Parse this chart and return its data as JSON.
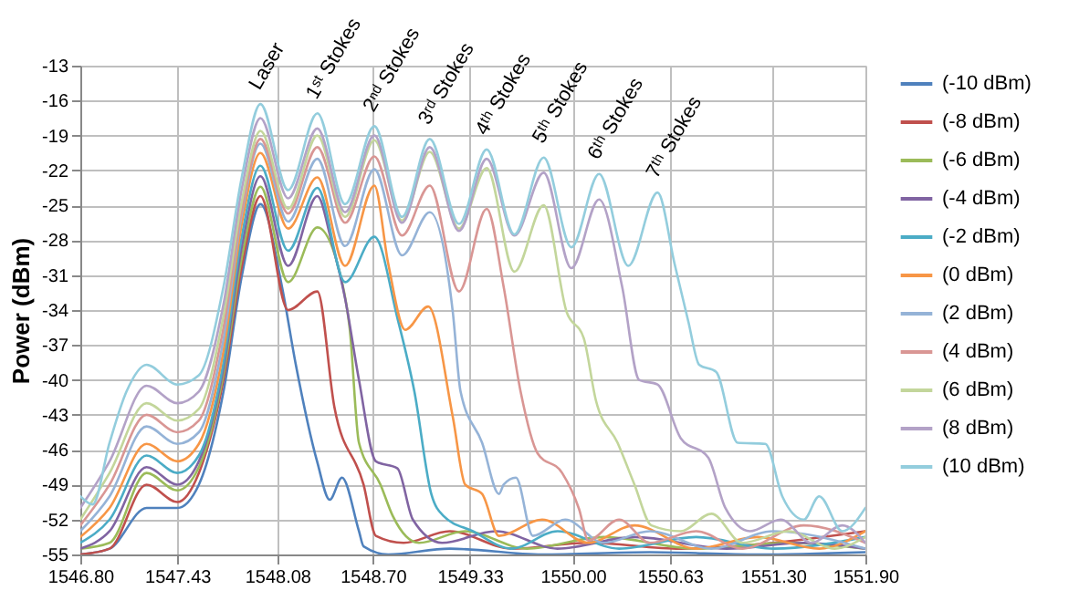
{
  "chart_data": {
    "type": "line",
    "ylabel": "Power (dBm)",
    "xlim": [
      1546.8,
      1551.9
    ],
    "xticks": [
      {
        "value": 1546.8,
        "label": "1546.80"
      },
      1547.43,
      1548.08,
      {
        "value": 1548.7,
        "label": "1548.70"
      },
      1549.33,
      {
        "value": 1550.0,
        "label": "1550.00"
      },
      1550.63,
      {
        "value": 1551.3,
        "label": "1551.30"
      },
      {
        "value": 1551.9,
        "label": "1551.90"
      }
    ],
    "ylim": [
      -55,
      -13
    ],
    "yticks": [
      -55,
      -52,
      -49,
      -46,
      -43,
      -40,
      -37,
      -34,
      -31,
      -28,
      -25,
      -22,
      -19,
      -16,
      -13
    ],
    "grid": true,
    "legend": "right",
    "marker": "none",
    "line_style": "solid",
    "annotations": [
      {
        "text": "Laser",
        "x": 1547.97,
        "y": -16.3
      },
      {
        "text": "1ˢᵗ Stokes",
        "x": 1548.34,
        "y": -17.1
      },
      {
        "text": "2ⁿᵈ Stokes",
        "x": 1548.71,
        "y": -18.2
      },
      {
        "text": "3ʳᵈ Stokes",
        "x": 1549.07,
        "y": -19.3
      },
      {
        "text": "4ᵗʰ Stokes",
        "x": 1549.44,
        "y": -20.2
      },
      {
        "text": "5ᵗʰ Stokes",
        "x": 1549.81,
        "y": -20.9
      },
      {
        "text": "6ᵗʰ Stokes",
        "x": 1550.17,
        "y": -22.3
      },
      {
        "text": "7ᵗʰ Stokes",
        "x": 1550.55,
        "y": -23.9
      }
    ],
    "series": [
      {
        "name": "(-10 dBm)",
        "color": "#4f81bd",
        "x": [
          1546.8,
          1546.99,
          1547.23,
          1547.43,
          1547.57,
          1547.73,
          1547.85,
          1547.97,
          1548.11,
          1548.2,
          1548.34,
          1548.42,
          1548.5,
          1548.61,
          1548.64,
          1548.8,
          1549.2,
          1549.8,
          1550.5,
          1551.2,
          1551.9
        ],
        "values": [
          -55,
          -54.5,
          -51,
          -51,
          -49,
          -41,
          -31,
          -24.9,
          -32,
          -38.7,
          -47.1,
          -50.3,
          -48.4,
          -53,
          -54.3,
          -55,
          -54.5,
          -55,
          -54.8,
          -55,
          -54.8
        ]
      },
      {
        "name": "(-8 dBm)",
        "color": "#c0504d",
        "x": [
          1546.8,
          1546.99,
          1547.23,
          1547.43,
          1547.57,
          1547.73,
          1547.85,
          1547.97,
          1548.15,
          1548.34,
          1548.45,
          1548.64,
          1548.72,
          1548.9,
          1549.2,
          1549.6,
          1550.1,
          1550.7,
          1551.3,
          1551.9
        ],
        "values": [
          -55,
          -54.5,
          -49,
          -50.5,
          -48,
          -40,
          -30.2,
          -24.2,
          -34.0,
          -32.4,
          -42.3,
          -49,
          -53.4,
          -54,
          -53,
          -54.5,
          -54,
          -54.5,
          -54,
          -53
        ]
      },
      {
        "name": "(-6 dBm)",
        "color": "#9bbb59",
        "x": [
          1546.8,
          1546.99,
          1547.23,
          1547.43,
          1547.57,
          1547.73,
          1547.85,
          1547.97,
          1548.15,
          1548.34,
          1548.5,
          1548.55,
          1548.61,
          1548.75,
          1548.83,
          1549.0,
          1549.3,
          1549.7,
          1550.2,
          1550.8,
          1551.4,
          1551.9
        ],
        "values": [
          -54.5,
          -54,
          -48,
          -49.5,
          -47.5,
          -39.5,
          -29.4,
          -23.4,
          -31.6,
          -26.9,
          -31.6,
          -35.6,
          -45.4,
          -49,
          -51.7,
          -54,
          -53,
          -54.5,
          -53.5,
          -54.5,
          -54,
          -54.5
        ]
      },
      {
        "name": "(-4 dBm)",
        "color": "#8064a2",
        "x": [
          1546.8,
          1546.99,
          1547.23,
          1547.43,
          1547.57,
          1547.73,
          1547.85,
          1547.97,
          1548.15,
          1548.34,
          1548.43,
          1548.52,
          1548.61,
          1548.72,
          1548.86,
          1548.96,
          1549.15,
          1549.5,
          1549.9,
          1550.4,
          1551.0,
          1551.5,
          1551.9
        ],
        "values": [
          -54.5,
          -53,
          -47.5,
          -49,
          -47,
          -39,
          -28.5,
          -22.5,
          -30.2,
          -24.2,
          -28,
          -33,
          -40,
          -47,
          -47.6,
          -52,
          -54,
          -53,
          -54.5,
          -53.5,
          -54.5,
          -54,
          -54.5
        ]
      },
      {
        "name": "(-2 dBm)",
        "color": "#4bacc6",
        "x": [
          1546.8,
          1546.99,
          1547.23,
          1547.43,
          1547.57,
          1547.73,
          1547.85,
          1547.97,
          1548.15,
          1548.34,
          1548.52,
          1548.71,
          1548.86,
          1548.97,
          1549.08,
          1549.16,
          1549.35,
          1549.6,
          1549.9,
          1550.3,
          1550.8,
          1551.3,
          1551.9
        ],
        "values": [
          -54,
          -52,
          -46.5,
          -48,
          -46.5,
          -38.5,
          -27.6,
          -21.6,
          -28.9,
          -23.5,
          -31.6,
          -27.7,
          -34.7,
          -41,
          -49.8,
          -51.7,
          -53,
          -54.5,
          -53,
          -54.5,
          -53.5,
          -54.5,
          -53.5
        ]
      },
      {
        "name": "(0 dBm)",
        "color": "#f79646",
        "x": [
          1546.8,
          1546.99,
          1547.23,
          1547.43,
          1547.57,
          1547.73,
          1547.85,
          1547.97,
          1548.15,
          1548.34,
          1548.52,
          1548.71,
          1548.8,
          1548.91,
          1549.06,
          1549.22,
          1549.3,
          1549.41,
          1549.52,
          1549.8,
          1550.1,
          1550.4,
          1550.8,
          1551.2,
          1551.6,
          1551.9
        ],
        "values": [
          -53.5,
          -51,
          -45.5,
          -47,
          -45.5,
          -37.5,
          -26.5,
          -20.5,
          -27.0,
          -22.6,
          -30.2,
          -23.3,
          -30,
          -35.7,
          -33.7,
          -43.2,
          -49,
          -49.8,
          -53.4,
          -52,
          -54,
          -52.5,
          -54.5,
          -53.5,
          -54.5,
          -53
        ]
      },
      {
        "name": "(2 dBm)",
        "color": "#95b3d7",
        "x": [
          1546.8,
          1546.99,
          1547.23,
          1547.43,
          1547.57,
          1547.73,
          1547.85,
          1547.97,
          1548.15,
          1548.34,
          1548.52,
          1548.71,
          1548.89,
          1549.07,
          1549.22,
          1549.27,
          1549.41,
          1549.52,
          1549.55,
          1549.63,
          1549.74,
          1549.95,
          1550.2,
          1550.5,
          1550.9,
          1551.3,
          1551.9
        ],
        "values": [
          -53,
          -50,
          -44,
          -45.5,
          -44.5,
          -36.5,
          -25.7,
          -19.7,
          -26.4,
          -21.0,
          -28.5,
          -21.9,
          -29.3,
          -25.6,
          -34.2,
          -41,
          -45.4,
          -49.8,
          -49,
          -48.4,
          -53.4,
          -52,
          -54,
          -53,
          -54.5,
          -53,
          -54.5
        ]
      },
      {
        "name": "(4 dBm)",
        "color": "#d99694",
        "x": [
          1546.8,
          1546.99,
          1547.23,
          1547.43,
          1547.57,
          1547.73,
          1547.85,
          1547.97,
          1548.15,
          1548.34,
          1548.52,
          1548.71,
          1548.89,
          1549.07,
          1549.26,
          1549.44,
          1549.55,
          1549.66,
          1549.77,
          1549.93,
          1550.04,
          1550.1,
          1550.3,
          1550.5,
          1550.8,
          1551.1,
          1551.5,
          1551.9
        ],
        "values": [
          -52.5,
          -49,
          -43,
          -44.5,
          -43.5,
          -35.5,
          -25.3,
          -19.3,
          -25.7,
          -20.0,
          -26.5,
          -20.8,
          -27.6,
          -23.3,
          -32.4,
          -25.3,
          -32,
          -41,
          -46.3,
          -48,
          -51.1,
          -53.8,
          -52,
          -54,
          -53,
          -54.5,
          -52.5,
          -54
        ]
      },
      {
        "name": "(6 dBm)",
        "color": "#c3d69b",
        "x": [
          1546.8,
          1546.99,
          1547.23,
          1547.43,
          1547.57,
          1547.73,
          1547.85,
          1547.97,
          1548.15,
          1548.34,
          1548.52,
          1548.71,
          1548.89,
          1549.07,
          1549.26,
          1549.44,
          1549.62,
          1549.81,
          1549.96,
          1550.07,
          1550.15,
          1550.29,
          1550.4,
          1550.51,
          1550.7,
          1550.9,
          1551.1,
          1551.4,
          1551.7,
          1551.9
        ],
        "values": [
          -52,
          -48,
          -42,
          -43.5,
          -42.5,
          -34.5,
          -24.6,
          -18.6,
          -25.3,
          -19.0,
          -26.0,
          -19.4,
          -26.3,
          -20.4,
          -27.0,
          -21.8,
          -30.7,
          -25.0,
          -34.2,
          -36.4,
          -41.8,
          -45.4,
          -49,
          -52.5,
          -53,
          -51.5,
          -54,
          -53,
          -54.5,
          -53.5
        ]
      },
      {
        "name": "(8 dBm)",
        "color": "#b3a2c7",
        "x": [
          1546.8,
          1546.99,
          1547.23,
          1547.43,
          1547.57,
          1547.73,
          1547.85,
          1547.97,
          1548.15,
          1548.34,
          1548.52,
          1548.71,
          1548.89,
          1549.07,
          1549.26,
          1549.44,
          1549.62,
          1549.81,
          1549.99,
          1550.17,
          1550.32,
          1550.43,
          1550.55,
          1550.7,
          1550.88,
          1550.99,
          1551.15,
          1551.35,
          1551.55,
          1551.75,
          1551.9
        ],
        "values": [
          -51,
          -47,
          -40.5,
          -42,
          -41,
          -33.5,
          -23.5,
          -17.5,
          -24.4,
          -18.4,
          -25.6,
          -19.0,
          -26.5,
          -20.0,
          -27.2,
          -21.0,
          -27.6,
          -22.2,
          -30.4,
          -24.5,
          -32,
          -40,
          -40.4,
          -45,
          -46.7,
          -51,
          -53,
          -52,
          -54,
          -52.5,
          -54
        ]
      },
      {
        "name": "(10 dBm)",
        "color": "#93cddd",
        "x": [
          1546.8,
          1546.88,
          1546.99,
          1547.1,
          1547.23,
          1547.43,
          1547.57,
          1547.73,
          1547.85,
          1547.97,
          1548.15,
          1548.34,
          1548.52,
          1548.71,
          1548.89,
          1549.07,
          1549.26,
          1549.44,
          1549.62,
          1549.81,
          1549.99,
          1550.17,
          1550.36,
          1550.55,
          1550.66,
          1550.75,
          1550.82,
          1550.93,
          1551.07,
          1551.25,
          1551.36,
          1551.5,
          1551.6,
          1551.75,
          1551.9
        ],
        "values": [
          -50,
          -50.7,
          -45.4,
          -41,
          -38.7,
          -40.4,
          -39.6,
          -32,
          -22.5,
          -16.3,
          -23.7,
          -17.1,
          -24.9,
          -18.2,
          -26.0,
          -19.3,
          -26.6,
          -20.2,
          -27.5,
          -20.9,
          -28.6,
          -22.3,
          -30.2,
          -23.9,
          -30,
          -35,
          -38.7,
          -39.3,
          -45.4,
          -45.5,
          -50,
          -52,
          -50,
          -53,
          -51
        ]
      }
    ]
  }
}
